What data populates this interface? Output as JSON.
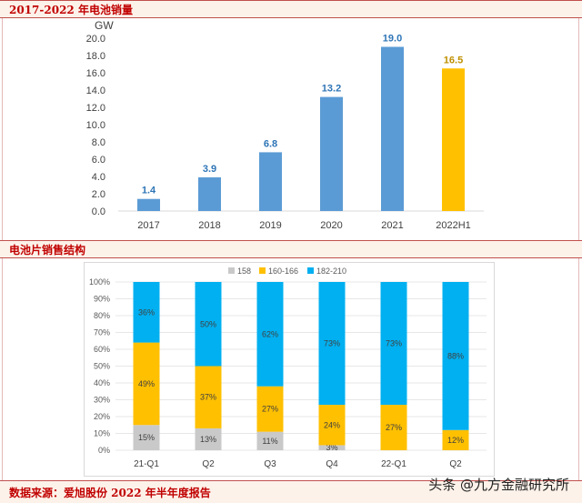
{
  "header1": "2017-2022 年电池销量",
  "header2": "电池片销售结构",
  "footer": "数据来源：爱旭股份 2022 年半年度报告",
  "watermark": "头条 @九方金融研究所",
  "colors": {
    "bar_blue": "#5b9bd5",
    "bar_gold": "#ffc000",
    "label_blue": "#2e75b6",
    "label_gold": "#bf9000",
    "stack_grey": "#c9c9c9",
    "stack_gold": "#ffc000",
    "stack_blue": "#00b0f0"
  },
  "chart_data": [
    {
      "type": "bar",
      "title": "2017-2022 年电池销量",
      "ylabel": "GW",
      "categories": [
        "2017",
        "2018",
        "2019",
        "2020",
        "2021",
        "2022H1"
      ],
      "values": [
        1.4,
        3.9,
        6.8,
        13.2,
        19.0,
        16.5
      ],
      "value_labels": [
        "1.4",
        "3.9",
        "6.8",
        "13.2",
        "19.0",
        "16.5"
      ],
      "highlight_index": 5,
      "ylim": [
        0,
        20
      ],
      "yticks": [
        "0.0",
        "2.0",
        "4.0",
        "6.0",
        "8.0",
        "10.0",
        "12.0",
        "14.0",
        "16.0",
        "18.0",
        "20.0"
      ],
      "grid": false
    },
    {
      "type": "bar",
      "stacked": true,
      "title": "电池片销售结构",
      "categories": [
        "21-Q1",
        "Q2",
        "Q3",
        "Q4",
        "22-Q1",
        "Q2"
      ],
      "series": [
        {
          "name": "158",
          "values": [
            15,
            13,
            11,
            3,
            0,
            0
          ],
          "labels": [
            "15%",
            "13%",
            "11%",
            "3%",
            "",
            ""
          ]
        },
        {
          "name": "160-166",
          "values": [
            49,
            37,
            27,
            24,
            27,
            12
          ],
          "labels": [
            "49%",
            "37%",
            "27%",
            "24%",
            "27%",
            "12%"
          ]
        },
        {
          "name": "182-210",
          "values": [
            36,
            50,
            62,
            73,
            73,
            88
          ],
          "labels": [
            "36%",
            "50%",
            "62%",
            "73%",
            "73%",
            "88%"
          ]
        }
      ],
      "ylim": [
        0,
        100
      ],
      "yticks": [
        "0%",
        "10%",
        "20%",
        "30%",
        "40%",
        "50%",
        "60%",
        "70%",
        "80%",
        "90%",
        "100%"
      ],
      "legend": "top",
      "grid": true
    }
  ]
}
